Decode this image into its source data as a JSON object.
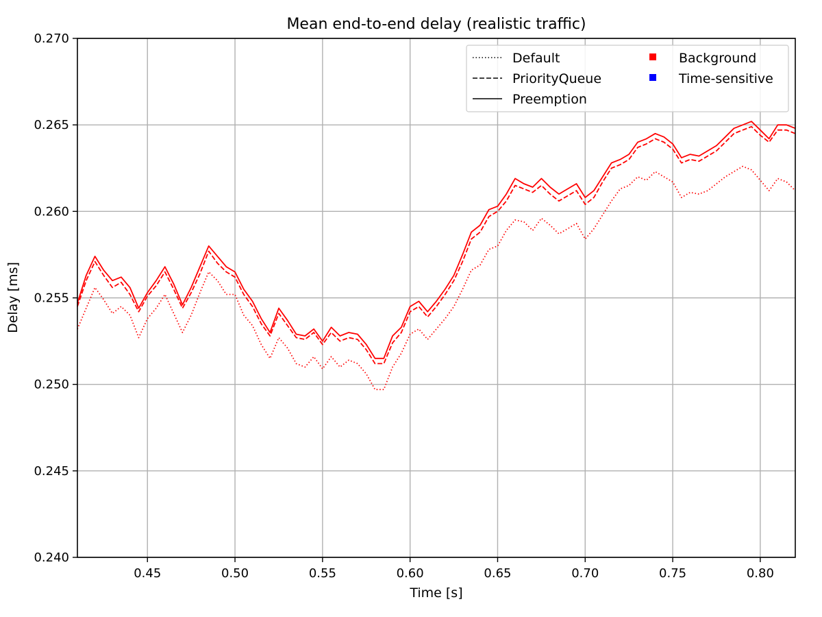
{
  "chart_data": {
    "type": "line",
    "title": "Mean end-to-end delay (realistic traffic)",
    "xlabel": "Time [s]",
    "ylabel": "Delay [ms]",
    "xlim": [
      0.41,
      0.82
    ],
    "ylim": [
      0.24,
      0.27
    ],
    "xticks": [
      0.45,
      0.5,
      0.55,
      0.6,
      0.65,
      0.7,
      0.75,
      0.8
    ],
    "xtick_labels": [
      "0.45",
      "0.50",
      "0.55",
      "0.60",
      "0.65",
      "0.70",
      "0.75",
      "0.80"
    ],
    "yticks": [
      0.24,
      0.245,
      0.25,
      0.255,
      0.26,
      0.265,
      0.27
    ],
    "ytick_labels": [
      "0.240",
      "0.245",
      "0.250",
      "0.255",
      "0.260",
      "0.265",
      "0.270"
    ],
    "grid": true,
    "legend_placement": "top-right",
    "legend": {
      "line_styles": [
        {
          "label": "Default",
          "dash": "dotted"
        },
        {
          "label": "PriorityQueue",
          "dash": "dashed"
        },
        {
          "label": "Preemption",
          "dash": "solid"
        }
      ],
      "traffic_classes": [
        {
          "label": "Background",
          "color": "#ff0000"
        },
        {
          "label": "Time-sensitive",
          "color": "#0000ff"
        }
      ]
    },
    "x": [
      0.41,
      0.415,
      0.42,
      0.425,
      0.43,
      0.435,
      0.44,
      0.445,
      0.45,
      0.455,
      0.46,
      0.465,
      0.47,
      0.475,
      0.48,
      0.485,
      0.49,
      0.495,
      0.5,
      0.505,
      0.51,
      0.515,
      0.52,
      0.525,
      0.53,
      0.535,
      0.54,
      0.545,
      0.55,
      0.555,
      0.56,
      0.565,
      0.57,
      0.575,
      0.58,
      0.585,
      0.59,
      0.595,
      0.6,
      0.605,
      0.61,
      0.615,
      0.62,
      0.625,
      0.63,
      0.635,
      0.64,
      0.645,
      0.65,
      0.655,
      0.66,
      0.665,
      0.67,
      0.675,
      0.68,
      0.685,
      0.69,
      0.695,
      0.7,
      0.705,
      0.71,
      0.715,
      0.72,
      0.725,
      0.73,
      0.735,
      0.74,
      0.745,
      0.75,
      0.755,
      0.76,
      0.765,
      0.77,
      0.775,
      0.78,
      0.785,
      0.79,
      0.795,
      0.8,
      0.805,
      0.81,
      0.815,
      0.82
    ],
    "series": [
      {
        "name": "Preemption",
        "traffic_class": "Background",
        "dash": "solid",
        "color": "#ff0000",
        "values": [
          0.2547,
          0.2563,
          0.2574,
          0.2566,
          0.256,
          0.2562,
          0.2556,
          0.2544,
          0.2553,
          0.256,
          0.2568,
          0.2558,
          0.2546,
          0.2556,
          0.2568,
          0.258,
          0.2574,
          0.2568,
          0.2565,
          0.2555,
          0.2548,
          0.2538,
          0.253,
          0.2544,
          0.2537,
          0.2529,
          0.2528,
          0.2532,
          0.2525,
          0.2533,
          0.2528,
          0.253,
          0.2529,
          0.2523,
          0.2515,
          0.2515,
          0.2528,
          0.2533,
          0.2545,
          0.2548,
          0.2542,
          0.2548,
          0.2555,
          0.2563,
          0.2575,
          0.2588,
          0.2592,
          0.2601,
          0.2603,
          0.261,
          0.2619,
          0.2616,
          0.2614,
          0.2619,
          0.2614,
          0.261,
          0.2613,
          0.2616,
          0.2608,
          0.2612,
          0.262,
          0.2628,
          0.263,
          0.2633,
          0.264,
          0.2642,
          0.2645,
          0.2643,
          0.2639,
          0.2631,
          0.2633,
          0.2632,
          0.2635,
          0.2638,
          0.2643,
          0.2648,
          0.265,
          0.2652,
          0.2647,
          0.2642,
          0.265,
          0.265,
          0.2648
        ]
      },
      {
        "name": "PriorityQueue",
        "traffic_class": "Background",
        "dash": "dashed",
        "color": "#ff0000",
        "values": [
          0.2545,
          0.256,
          0.2571,
          0.2563,
          0.2556,
          0.2559,
          0.2552,
          0.2542,
          0.2551,
          0.2557,
          0.2565,
          0.2555,
          0.2544,
          0.2553,
          0.2564,
          0.2577,
          0.257,
          0.2565,
          0.2562,
          0.2552,
          0.2545,
          0.2535,
          0.2528,
          0.2541,
          0.2534,
          0.2527,
          0.2526,
          0.253,
          0.2523,
          0.253,
          0.2525,
          0.2527,
          0.2526,
          0.252,
          0.2512,
          0.2512,
          0.2524,
          0.253,
          0.2542,
          0.2545,
          0.2539,
          0.2545,
          0.2552,
          0.256,
          0.2571,
          0.2584,
          0.2588,
          0.2597,
          0.26,
          0.2606,
          0.2615,
          0.2613,
          0.2611,
          0.2615,
          0.261,
          0.2606,
          0.2609,
          0.2612,
          0.2604,
          0.2608,
          0.2617,
          0.2625,
          0.2627,
          0.263,
          0.2637,
          0.2639,
          0.2642,
          0.264,
          0.2636,
          0.2628,
          0.263,
          0.2629,
          0.2632,
          0.2635,
          0.264,
          0.2645,
          0.2647,
          0.2649,
          0.2644,
          0.264,
          0.2647,
          0.2647,
          0.2645
        ]
      },
      {
        "name": "Default",
        "traffic_class": "Background",
        "dash": "dotted",
        "color": "#ff0000",
        "values": [
          0.2532,
          0.2544,
          0.2556,
          0.2549,
          0.2541,
          0.2545,
          0.254,
          0.2527,
          0.2538,
          0.2544,
          0.2552,
          0.2541,
          0.253,
          0.254,
          0.2553,
          0.2565,
          0.256,
          0.2552,
          0.2552,
          0.254,
          0.2534,
          0.2523,
          0.2515,
          0.2527,
          0.2521,
          0.2512,
          0.251,
          0.2516,
          0.2509,
          0.2516,
          0.251,
          0.2514,
          0.2512,
          0.2506,
          0.2497,
          0.2497,
          0.251,
          0.2518,
          0.2529,
          0.2532,
          0.2526,
          0.2532,
          0.2538,
          0.2545,
          0.2555,
          0.2566,
          0.2569,
          0.2578,
          0.258,
          0.2589,
          0.2595,
          0.2594,
          0.2589,
          0.2596,
          0.2592,
          0.2587,
          0.259,
          0.2593,
          0.2584,
          0.259,
          0.2598,
          0.2606,
          0.2613,
          0.2615,
          0.262,
          0.2618,
          0.2623,
          0.262,
          0.2617,
          0.2608,
          0.2611,
          0.261,
          0.2612,
          0.2616,
          0.262,
          0.2623,
          0.2626,
          0.2624,
          0.2618,
          0.2612,
          0.2619,
          0.2617,
          0.2612
        ]
      }
    ]
  }
}
